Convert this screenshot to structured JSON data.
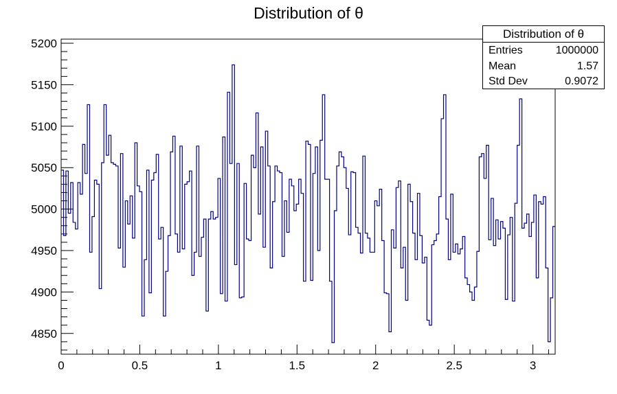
{
  "chart_data": {
    "type": "bar",
    "title": "Distribution of θ",
    "xlabel": "",
    "ylabel": "",
    "xlim": [
      0,
      3.14159
    ],
    "ylim": [
      4825,
      5205
    ],
    "xticks": [
      "0",
      "0.5",
      "1",
      "1.5",
      "2",
      "2.5",
      "3"
    ],
    "yticks": [
      "4850",
      "4900",
      "4950",
      "5000",
      "5050",
      "5100",
      "5150",
      "5200"
    ],
    "xtick_values": [
      0,
      0.5,
      1,
      1.5,
      2,
      2.5,
      3
    ],
    "ytick_values": [
      4850,
      4900,
      4950,
      5000,
      5050,
      5100,
      5150,
      5200
    ],
    "bins": 200,
    "line_color": "#000080",
    "values": [
      5047,
      4968,
      5046,
      4995,
      5032,
      4984,
      4976,
      5032,
      5018,
      5078,
      5043,
      5126,
      4948,
      4991,
      5035,
      5030,
      4904,
      5056,
      5126,
      5065,
      5089,
      5056,
      5054,
      5052,
      4953,
      5067,
      4930,
      5010,
      4982,
      5016,
      4965,
      5080,
      5028,
      5021,
      4871,
      4939,
      5047,
      4899,
      5035,
      5044,
      5066,
      4964,
      4978,
      4871,
      4925,
      4968,
      5069,
      5088,
      4970,
      4948,
      5076,
      4952,
      5030,
      5033,
      5046,
      4920,
      4948,
      5076,
      4943,
      4966,
      4988,
      4877,
      4988,
      4997,
      4988,
      4990,
      5037,
      4898,
      5087,
      4889,
      5141,
      5055,
      5174,
      4933,
      5055,
      4893,
      4894,
      5031,
      4964,
      4962,
      5065,
      5050,
      5116,
      4994,
      5075,
      4954,
      5094,
      5052,
      4929,
      5009,
      5052,
      5046,
      5044,
      4943,
      5010,
      4972,
      5036,
      5028,
      4998,
      5006,
      5036,
      5019,
      4913,
      5082,
      5078,
      4914,
      5043,
      5075,
      4950,
      5083,
      5138,
      5036,
      5036,
      4913,
      4839,
      4998,
      5052,
      5069,
      5063,
      5050,
      5025,
      4969,
      5045,
      5044,
      4978,
      4971,
      4947,
      5064,
      4971,
      4965,
      4948,
      4948,
      5010,
      5004,
      5024,
      4962,
      4899,
      4898,
      4852,
      4975,
      4953,
      5026,
      5034,
      4929,
      4954,
      4890,
      5030,
      5009,
      4971,
      4939,
      5019,
      4968,
      4935,
      4942,
      4866,
      4860,
      4957,
      4962,
      4970,
      5015,
      5109,
      5138,
      4988,
      4939,
      5018,
      4948,
      4958,
      4946,
      4952,
      4967,
      4917,
      4909,
      4900,
      4890,
      4906,
      4949,
      5063,
      5067,
      5037,
      5077,
      4963,
      5013,
      4956,
      4987,
      4964,
      4985,
      4977,
      4891,
      4969,
      4990,
      4889,
      5007,
      5077,
      5133,
      4977,
      4983,
      4994,
      4967,
      4984,
      5017,
      4917,
      5009,
      5006,
      5015,
      4929,
      4840,
      4893,
      4979
    ]
  },
  "stats": {
    "title": "Distribution of θ",
    "rows": [
      {
        "key": "Entries",
        "value": "1000000"
      },
      {
        "key": "Mean",
        "value": "1.57"
      },
      {
        "key": "Std Dev",
        "value": "0.9072"
      }
    ]
  }
}
